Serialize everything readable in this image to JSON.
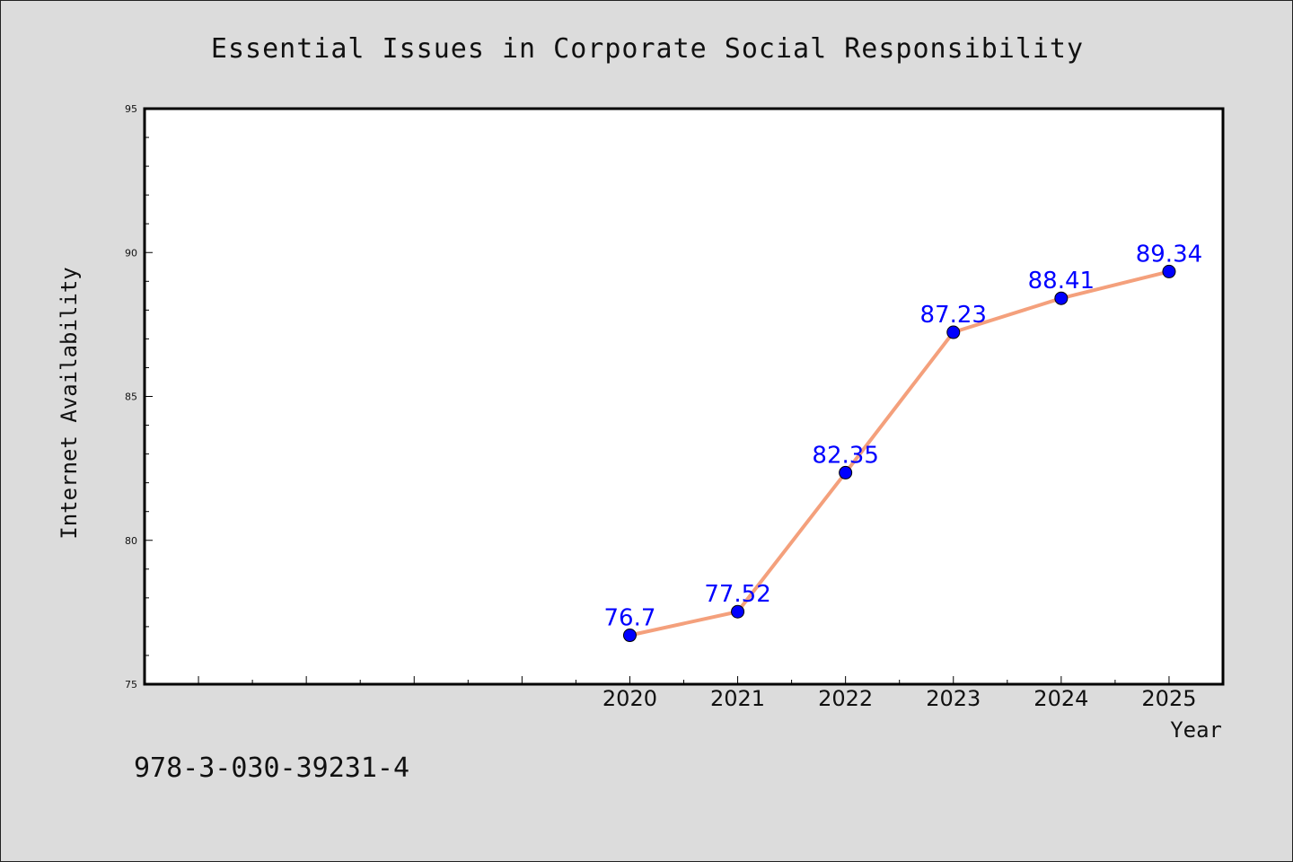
{
  "chart_data": {
    "type": "line",
    "title": "Essential Issues in Corporate Social Responsibility",
    "xlabel": "Year",
    "ylabel": "Internet Availability",
    "x": [
      "2020",
      "2021",
      "2022",
      "2023",
      "2024",
      "2025"
    ],
    "series": [
      {
        "values": [
          76.7,
          77.52,
          82.35,
          87.23,
          88.41,
          89.34
        ],
        "labels": [
          "76.7",
          "77.52",
          "82.35",
          "87.23",
          "88.41",
          "89.34"
        ],
        "line_color": "#f4a07c",
        "marker_color": "#0000ff"
      }
    ],
    "ylim": [
      75,
      95
    ],
    "yticks": [
      "75",
      "80",
      "85",
      "90",
      "95"
    ],
    "xlim": [
      2015.5,
      2025.5
    ],
    "grid": false,
    "legend": "none"
  },
  "footer": {
    "text": "978-3-030-39231-4"
  }
}
